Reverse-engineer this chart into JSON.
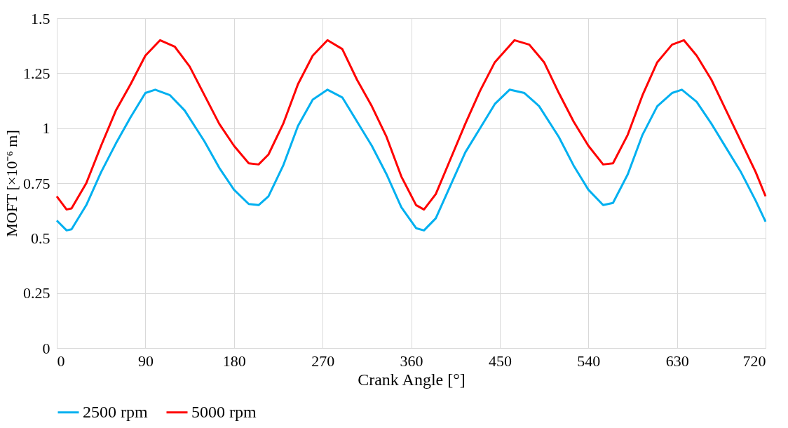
{
  "chart_data": {
    "type": "line",
    "xlabel": "Crank Angle [°]",
    "ylabel": "MOFT [×10⁻⁶ m]",
    "xlim": [
      0,
      720
    ],
    "xticks": [
      0,
      90,
      180,
      270,
      360,
      450,
      540,
      630,
      720
    ],
    "ylim": [
      0,
      1.5
    ],
    "yticks": [
      0,
      0.25,
      0.5,
      0.75,
      1,
      1.25,
      1.5
    ],
    "grid": true,
    "legend": "bottom",
    "marker": "none",
    "line_style": "solid",
    "series": [
      {
        "name": "2500 rpm",
        "color": "#00b0f0",
        "x": [
          0,
          10,
          15,
          30,
          45,
          60,
          75,
          90,
          100,
          115,
          130,
          150,
          165,
          180,
          195,
          205,
          215,
          230,
          245,
          260,
          275,
          290,
          305,
          320,
          335,
          350,
          365,
          373,
          385,
          400,
          415,
          430,
          445,
          460,
          475,
          490,
          510,
          525,
          540,
          555,
          565,
          580,
          595,
          610,
          625,
          635,
          650,
          665,
          680,
          695,
          710,
          720
        ],
        "values": [
          0.58,
          0.535,
          0.54,
          0.65,
          0.8,
          0.93,
          1.05,
          1.16,
          1.175,
          1.15,
          1.08,
          0.94,
          0.82,
          0.72,
          0.655,
          0.65,
          0.69,
          0.83,
          1.01,
          1.13,
          1.175,
          1.14,
          1.03,
          0.92,
          0.79,
          0.64,
          0.545,
          0.535,
          0.59,
          0.74,
          0.89,
          1.0,
          1.11,
          1.175,
          1.16,
          1.1,
          0.96,
          0.83,
          0.72,
          0.65,
          0.66,
          0.79,
          0.97,
          1.1,
          1.16,
          1.175,
          1.12,
          1.02,
          0.91,
          0.8,
          0.67,
          0.575
        ]
      },
      {
        "name": "5000 rpm",
        "color": "#ff0000",
        "x": [
          0,
          10,
          15,
          30,
          45,
          60,
          75,
          90,
          105,
          120,
          135,
          150,
          165,
          180,
          195,
          205,
          215,
          230,
          245,
          260,
          275,
          290,
          305,
          320,
          335,
          350,
          365,
          373,
          385,
          400,
          415,
          430,
          445,
          465,
          480,
          495,
          510,
          525,
          540,
          555,
          565,
          580,
          595,
          610,
          625,
          637,
          650,
          665,
          680,
          695,
          710,
          720
        ],
        "values": [
          0.69,
          0.63,
          0.635,
          0.75,
          0.92,
          1.08,
          1.2,
          1.33,
          1.4,
          1.37,
          1.28,
          1.15,
          1.02,
          0.92,
          0.84,
          0.835,
          0.88,
          1.02,
          1.2,
          1.33,
          1.4,
          1.36,
          1.22,
          1.1,
          0.96,
          0.78,
          0.65,
          0.63,
          0.7,
          0.86,
          1.02,
          1.17,
          1.3,
          1.4,
          1.38,
          1.3,
          1.16,
          1.03,
          0.92,
          0.835,
          0.84,
          0.97,
          1.15,
          1.3,
          1.38,
          1.4,
          1.33,
          1.22,
          1.08,
          0.94,
          0.8,
          0.69
        ]
      }
    ]
  }
}
